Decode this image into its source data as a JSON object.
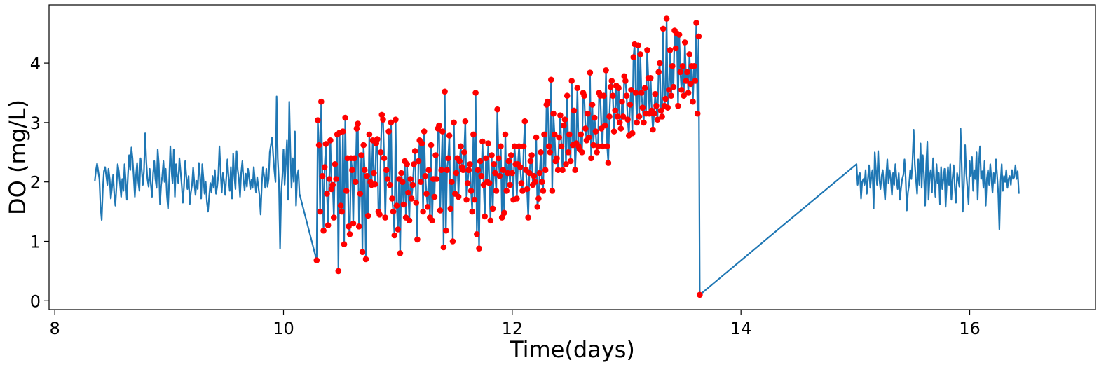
{
  "chart_data": {
    "type": "line",
    "xlabel": "Time(days)",
    "ylabel": "DO (mg/L)",
    "xlim": [
      7.95,
      17.1
    ],
    "ylim": [
      -0.15,
      4.98
    ],
    "xticks": [
      8,
      10,
      12,
      14,
      16
    ],
    "yticks": [
      0,
      1,
      2,
      3,
      4
    ],
    "grid": false,
    "colors": {
      "line": "#1f77b4",
      "markers": "#ff0000"
    },
    "series": [
      {
        "type": "line",
        "t_start": 8.35,
        "t_step": 0.01,
        "values": [
          2.02,
          2.2,
          2.31,
          2.18,
          2.05,
          1.58,
          1.36,
          1.88,
          2.18,
          2.25,
          2.1,
          1.95,
          2.22,
          2.05,
          1.72,
          1.9,
          2.12,
          1.8,
          1.6,
          1.95,
          2.3,
          2.18,
          1.96,
          1.75,
          2.05,
          1.85,
          2.3,
          2.02,
          1.7,
          2.12,
          2.45,
          2.2,
          2.58,
          2.4,
          2.1,
          1.75,
          2.1,
          2.32,
          2.0,
          1.85,
          2.4,
          2.2,
          1.95,
          2.18,
          2.82,
          2.35,
          2.05,
          1.92,
          2.22,
          1.96,
          1.75,
          2.15,
          2.35,
          2.05,
          1.9,
          2.55,
          2.3,
          1.62,
          1.95,
          2.1,
          2.35,
          2.0,
          2.22,
          1.78,
          1.55,
          2.0,
          2.6,
          2.2,
          1.98,
          2.55,
          1.75,
          2.3,
          2.1,
          1.98,
          2.4,
          2.18,
          1.94,
          1.65,
          1.92,
          2.35,
          2.1,
          1.88,
          2.1,
          1.62,
          1.82,
          1.95,
          2.24,
          2.0,
          1.78,
          2.02,
          1.88,
          2.32,
          2.1,
          1.72,
          2.3,
          2.05,
          1.8,
          2.0,
          1.66,
          1.5,
          1.75,
          1.98,
          1.82,
          2.1,
          1.9,
          2.2,
          1.8,
          1.92,
          2.12,
          2.6,
          2.15,
          1.82,
          2.15,
          2.02,
          1.78,
          2.08,
          2.38,
          2.05,
          1.85,
          2.25,
          1.72,
          2.48,
          2.1,
          1.88,
          2.52,
          2.2,
          2.05,
          1.75,
          2.15,
          2.35,
          2.05,
          1.86,
          2.14,
          1.92,
          2.22,
          2.08,
          1.88,
          2.04,
          1.9,
          2.25,
          2.02,
          1.82,
          2.08,
          1.92,
          1.78,
          1.45,
          1.95,
          2.25,
          2.1,
          1.9,
          2.22,
          1.92,
          2.05,
          2.5,
          2.62,
          2.75,
          2.45,
          2.2,
          2.0,
          3.44,
          2.4,
          2.0,
          0.88,
          1.8,
          2.1,
          2.55,
          1.95,
          2.3,
          2.7,
          1.7,
          3.35,
          2.5,
          1.9,
          2.4,
          2.0,
          2.85,
          1.6,
          2.1,
          2.2,
          1.8
        ],
        "joins": [
          [
            10.29,
            0.68
          ],
          [
            15.0,
            0.1
          ],
          [
            15.01,
            2.3
          ]
        ]
      },
      {
        "type": "line",
        "t_start": 15.02,
        "t_step": 0.01,
        "values": [
          1.95,
          2.1,
          2.15,
          1.72,
          2.0,
          2.05,
          1.95,
          2.2,
          1.8,
          2.05,
          2.28,
          1.9,
          2.1,
          2.2,
          1.55,
          2.5,
          2.2,
          1.95,
          2.52,
          2.05,
          1.88,
          2.1,
          2.2,
          1.95,
          1.7,
          2.1,
          2.38,
          1.98,
          2.2,
          2.05,
          1.78,
          2.15,
          1.95,
          2.3,
          2.05,
          1.88,
          2.15,
          1.7,
          1.9,
          2.05,
          2.12,
          2.38,
          2.08,
          1.52,
          1.82,
          1.95,
          2.2,
          2.05,
          2.35,
          2.88,
          2.3,
          2.05,
          1.8,
          2.38,
          1.95,
          2.65,
          1.9,
          2.45,
          2.15,
          1.6,
          2.3,
          2.68,
          1.7,
          2.1,
          2.2,
          1.82,
          2.4,
          2.05,
          1.75,
          2.3,
          1.98,
          2.15,
          1.62,
          2.25,
          1.88,
          2.05,
          2.22,
          1.58,
          2.0,
          2.25,
          1.95,
          2.3,
          1.7,
          2.05,
          2.28,
          1.9,
          1.65,
          2.15,
          2.05,
          1.92,
          2.9,
          2.3,
          1.5,
          2.0,
          2.62,
          2.15,
          1.9,
          1.62,
          2.35,
          2.1,
          2.42,
          1.85,
          2.2,
          2.05,
          2.5,
          1.7,
          2.3,
          2.6,
          2.05,
          2.18,
          1.9,
          2.35,
          1.6,
          2.05,
          2.2,
          1.95,
          2.3,
          2.05,
          1.82,
          2.15,
          1.98,
          2.38,
          2.1,
          1.8,
          1.2,
          2.0,
          2.3,
          1.85,
          2.1,
          2.0,
          2.2,
          1.9,
          2.05,
          2.1,
          1.95,
          2.2,
          2.05,
          2.08,
          2.28,
          2.05,
          2.18,
          1.8
        ]
      },
      {
        "type": "scatter",
        "t_start": 10.29,
        "t_step": 0.01,
        "values": [
          0.68,
          3.04,
          2.62,
          1.5,
          3.35,
          2.1,
          1.18,
          2.25,
          2.64,
          1.8,
          1.27,
          2.05,
          2.7,
          1.88,
          1.95,
          1.4,
          2.3,
          2.05,
          2.8,
          0.5,
          2.83,
          1.6,
          1.5,
          2.85,
          0.95,
          3.08,
          1.85,
          2.4,
          1.25,
          1.12,
          2.4,
          2.2,
          1.3,
          2.4,
          2.0,
          2.9,
          2.98,
          1.25,
          1.8,
          2.45,
          0.82,
          2.62,
          2.2,
          0.7,
          2.1,
          1.43,
          2.8,
          2.0,
          1.95,
          2.7,
          2.15,
          1.96,
          2.65,
          2.72,
          1.5,
          1.45,
          2.5,
          3.13,
          3.05,
          2.4,
          1.4,
          2.2,
          2.05,
          2.85,
          1.95,
          3.0,
          1.72,
          1.5,
          1.1,
          3.05,
          1.6,
          1.2,
          2.05,
          0.8,
          2.15,
          2.0,
          1.62,
          2.35,
          1.4,
          2.3,
          1.82,
          1.35,
          2.05,
          1.72,
          1.95,
          2.3,
          2.52,
          1.65,
          1.03,
          2.35,
          2.7,
          2.0,
          2.65,
          1.5,
          2.85,
          2.1,
          1.8,
          1.58,
          2.2,
          1.4,
          2.62,
          1.35,
          2.05,
          1.75,
          2.45,
          2.05,
          2.9,
          2.95,
          1.52,
          2.2,
          2.85,
          0.9,
          3.52,
          1.18,
          2.2,
          2.4,
          2.78,
          1.55,
          2.0,
          1.0,
          3.0,
          1.8,
          2.15,
          2.4,
          1.75,
          2.35,
          2.6,
          2.25,
          2.2,
          2.5,
          3.02,
          1.7,
          1.98,
          2.2,
          2.3,
          1.85,
          1.5,
          2.8,
          1.7,
          3.5,
          1.12,
          2.2,
          0.88,
          2.35,
          2.1,
          2.68,
          1.95,
          1.42,
          2.4,
          2.0,
          2.65,
          1.98,
          1.35,
          2.45,
          1.55,
          2.3,
          2.15,
          1.85,
          3.22,
          2.4,
          2.1,
          2.6,
          1.4,
          2.2,
          1.48,
          2.8,
          1.85,
          2.15,
          2.35,
          1.95,
          2.45,
          2.15,
          1.7,
          2.6,
          2.3,
          1.72,
          2.3,
          2.6,
          2.25,
          1.98,
          1.85,
          2.6,
          3.02,
          2.2,
          1.88,
          1.4,
          2.15,
          2.35,
          2.45,
          1.95,
          2.1,
          2.0,
          2.75,
          1.58,
          1.72,
          2.15,
          2.5,
          2.0,
          1.85,
          2.8,
          2.2,
          3.3,
          3.35,
          2.6,
          2.5,
          3.72,
          1.85,
          3.15,
          2.8,
          2.35,
          2.4,
          2.2,
          2.75,
          3.12,
          2.6,
          2.2,
          2.95,
          3.05,
          2.3,
          3.45,
          2.5,
          2.8,
          2.35,
          3.7,
          2.62,
          3.2,
          2.2,
          2.65,
          3.58,
          2.6,
          2.55,
          2.8,
          2.5,
          3.5,
          3.45,
          2.9,
          2.7,
          3.15,
          2.75,
          3.84,
          2.4,
          3.3,
          2.62,
          3.08,
          2.85,
          2.5,
          2.6,
          3.5,
          3.45,
          2.9,
          2.6,
          3.45,
          2.95,
          3.88,
          2.6,
          2.32,
          3.1,
          3.6,
          3.7,
          3.45,
          2.85,
          3.2,
          3.62,
          3.1,
          3.58,
          3.0,
          2.9,
          3.35,
          3.1,
          3.78,
          3.7,
          3.45,
          3.05,
          2.78,
          3.3,
          3.55,
          2.82,
          4.1,
          4.32,
          3.5,
          3.0,
          4.3,
          3.1,
          4.15,
          3.5,
          3.25,
          3.0,
          3.58,
          3.15,
          4.22,
          3.75,
          3.15,
          3.75,
          3.2,
          2.88,
          3.15,
          3.48,
          3.28,
          3.05,
          3.85,
          4.0,
          3.2,
          3.1,
          4.58,
          3.28,
          3.4,
          4.75,
          3.25,
          3.55,
          4.22,
          3.45,
          3.95,
          3.6,
          4.55,
          4.25,
          4.5,
          3.28,
          4.48,
          3.85,
          3.55,
          3.95,
          3.45,
          4.35,
          3.7,
          3.85,
          3.5,
          4.15,
          3.65,
          3.95,
          3.35,
          3.95,
          3.7,
          4.68,
          3.15,
          4.45,
          0.1
        ]
      }
    ]
  }
}
